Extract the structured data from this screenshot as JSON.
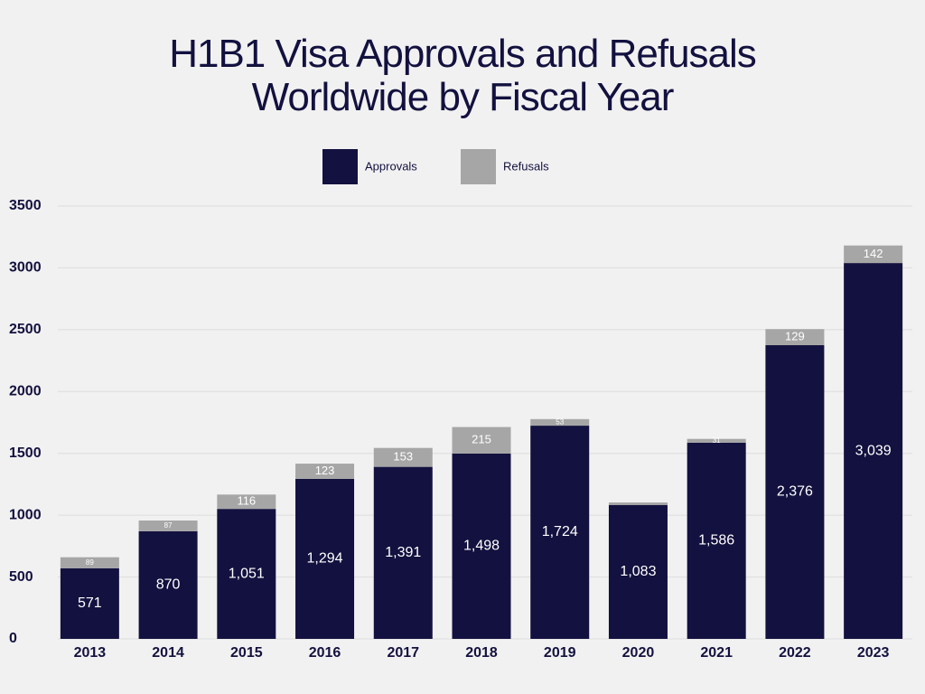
{
  "chart_data": {
    "type": "stacked-bar",
    "title": "H1B1 Visa Approvals and Refusals Worldwide by Fiscal Year",
    "categories": [
      "2013",
      "2014",
      "2015",
      "2016",
      "2017",
      "2018",
      "2019",
      "2020",
      "2021",
      "2022",
      "2023"
    ],
    "series": [
      {
        "name": "Approvals",
        "color": "#13113f",
        "values": [
          571,
          870,
          1051,
          1294,
          1391,
          1498,
          1724,
          1083,
          1586,
          2376,
          3039
        ],
        "value_labels": [
          "571",
          "870",
          "1,051",
          "1,294",
          "1,391",
          "1,498",
          "1,724",
          "1,083",
          "1,586",
          "2,376",
          "3,039"
        ]
      },
      {
        "name": "Refusals",
        "color": "#a6a6a6",
        "values": [
          89,
          87,
          116,
          123,
          153,
          215,
          53,
          20,
          31,
          129,
          142
        ],
        "value_labels": [
          "89",
          "87",
          "116",
          "123",
          "153",
          "215",
          "53",
          null,
          "31",
          "129",
          "142"
        ]
      }
    ],
    "ylim": [
      0,
      3500
    ],
    "yticks": [
      0,
      500,
      1000,
      1500,
      2000,
      2500,
      3000,
      3500
    ],
    "grid": true,
    "legend": "top"
  }
}
